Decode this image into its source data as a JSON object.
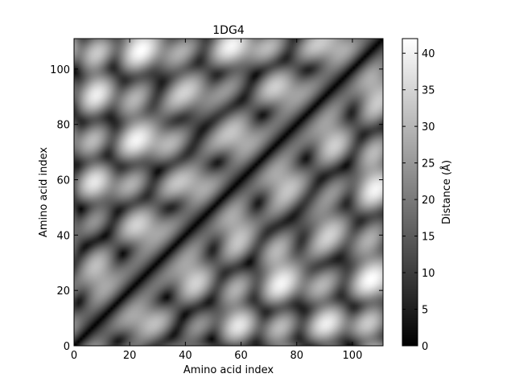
{
  "chart_data": {
    "type": "heatmap",
    "title": "1DG4",
    "xlabel": "Amino acid index",
    "ylabel": "Amino acid index",
    "colorbar_label": "Distance (Å)",
    "colormap": "gray",
    "n_residues": 111,
    "xlim": [
      0,
      111
    ],
    "ylim": [
      0,
      111
    ],
    "x_ticks": [
      0,
      20,
      40,
      60,
      80,
      100
    ],
    "y_ticks": [
      0,
      20,
      40,
      60,
      80,
      100
    ],
    "colorbar_range": [
      0,
      42
    ],
    "colorbar_ticks": [
      0,
      5,
      10,
      15,
      20,
      25,
      30,
      35,
      40
    ],
    "diagonal_value": 0,
    "grid": false,
    "legend": "none",
    "matrix_description": "Symmetric pairwise C-alpha distance matrix; dark diagonal band, repeating bright lobes of ~35-42 Å about every 15 residues"
  }
}
